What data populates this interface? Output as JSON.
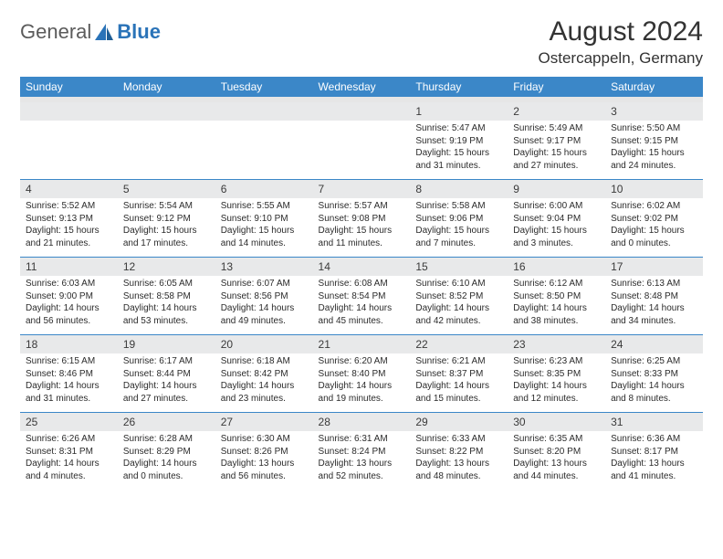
{
  "logo": {
    "text1": "General",
    "text2": "Blue"
  },
  "title": "August 2024",
  "location": "Ostercappeln, Germany",
  "colors": {
    "header_bg": "#3b87c8",
    "header_text": "#ffffff",
    "num_bg": "#e8e9ea",
    "divider": "#3b87c8",
    "logo_gray": "#5b5b5b",
    "logo_blue": "#2a73b8"
  },
  "day_names": [
    "Sunday",
    "Monday",
    "Tuesday",
    "Wednesday",
    "Thursday",
    "Friday",
    "Saturday"
  ],
  "weeks": [
    {
      "nums": [
        "",
        "",
        "",
        "",
        "1",
        "2",
        "3"
      ],
      "cells": [
        null,
        null,
        null,
        null,
        {
          "sunrise": "Sunrise: 5:47 AM",
          "sunset": "Sunset: 9:19 PM",
          "daylight1": "Daylight: 15 hours",
          "daylight2": "and 31 minutes."
        },
        {
          "sunrise": "Sunrise: 5:49 AM",
          "sunset": "Sunset: 9:17 PM",
          "daylight1": "Daylight: 15 hours",
          "daylight2": "and 27 minutes."
        },
        {
          "sunrise": "Sunrise: 5:50 AM",
          "sunset": "Sunset: 9:15 PM",
          "daylight1": "Daylight: 15 hours",
          "daylight2": "and 24 minutes."
        }
      ]
    },
    {
      "nums": [
        "4",
        "5",
        "6",
        "7",
        "8",
        "9",
        "10"
      ],
      "cells": [
        {
          "sunrise": "Sunrise: 5:52 AM",
          "sunset": "Sunset: 9:13 PM",
          "daylight1": "Daylight: 15 hours",
          "daylight2": "and 21 minutes."
        },
        {
          "sunrise": "Sunrise: 5:54 AM",
          "sunset": "Sunset: 9:12 PM",
          "daylight1": "Daylight: 15 hours",
          "daylight2": "and 17 minutes."
        },
        {
          "sunrise": "Sunrise: 5:55 AM",
          "sunset": "Sunset: 9:10 PM",
          "daylight1": "Daylight: 15 hours",
          "daylight2": "and 14 minutes."
        },
        {
          "sunrise": "Sunrise: 5:57 AM",
          "sunset": "Sunset: 9:08 PM",
          "daylight1": "Daylight: 15 hours",
          "daylight2": "and 11 minutes."
        },
        {
          "sunrise": "Sunrise: 5:58 AM",
          "sunset": "Sunset: 9:06 PM",
          "daylight1": "Daylight: 15 hours",
          "daylight2": "and 7 minutes."
        },
        {
          "sunrise": "Sunrise: 6:00 AM",
          "sunset": "Sunset: 9:04 PM",
          "daylight1": "Daylight: 15 hours",
          "daylight2": "and 3 minutes."
        },
        {
          "sunrise": "Sunrise: 6:02 AM",
          "sunset": "Sunset: 9:02 PM",
          "daylight1": "Daylight: 15 hours",
          "daylight2": "and 0 minutes."
        }
      ]
    },
    {
      "nums": [
        "11",
        "12",
        "13",
        "14",
        "15",
        "16",
        "17"
      ],
      "cells": [
        {
          "sunrise": "Sunrise: 6:03 AM",
          "sunset": "Sunset: 9:00 PM",
          "daylight1": "Daylight: 14 hours",
          "daylight2": "and 56 minutes."
        },
        {
          "sunrise": "Sunrise: 6:05 AM",
          "sunset": "Sunset: 8:58 PM",
          "daylight1": "Daylight: 14 hours",
          "daylight2": "and 53 minutes."
        },
        {
          "sunrise": "Sunrise: 6:07 AM",
          "sunset": "Sunset: 8:56 PM",
          "daylight1": "Daylight: 14 hours",
          "daylight2": "and 49 minutes."
        },
        {
          "sunrise": "Sunrise: 6:08 AM",
          "sunset": "Sunset: 8:54 PM",
          "daylight1": "Daylight: 14 hours",
          "daylight2": "and 45 minutes."
        },
        {
          "sunrise": "Sunrise: 6:10 AM",
          "sunset": "Sunset: 8:52 PM",
          "daylight1": "Daylight: 14 hours",
          "daylight2": "and 42 minutes."
        },
        {
          "sunrise": "Sunrise: 6:12 AM",
          "sunset": "Sunset: 8:50 PM",
          "daylight1": "Daylight: 14 hours",
          "daylight2": "and 38 minutes."
        },
        {
          "sunrise": "Sunrise: 6:13 AM",
          "sunset": "Sunset: 8:48 PM",
          "daylight1": "Daylight: 14 hours",
          "daylight2": "and 34 minutes."
        }
      ]
    },
    {
      "nums": [
        "18",
        "19",
        "20",
        "21",
        "22",
        "23",
        "24"
      ],
      "cells": [
        {
          "sunrise": "Sunrise: 6:15 AM",
          "sunset": "Sunset: 8:46 PM",
          "daylight1": "Daylight: 14 hours",
          "daylight2": "and 31 minutes."
        },
        {
          "sunrise": "Sunrise: 6:17 AM",
          "sunset": "Sunset: 8:44 PM",
          "daylight1": "Daylight: 14 hours",
          "daylight2": "and 27 minutes."
        },
        {
          "sunrise": "Sunrise: 6:18 AM",
          "sunset": "Sunset: 8:42 PM",
          "daylight1": "Daylight: 14 hours",
          "daylight2": "and 23 minutes."
        },
        {
          "sunrise": "Sunrise: 6:20 AM",
          "sunset": "Sunset: 8:40 PM",
          "daylight1": "Daylight: 14 hours",
          "daylight2": "and 19 minutes."
        },
        {
          "sunrise": "Sunrise: 6:21 AM",
          "sunset": "Sunset: 8:37 PM",
          "daylight1": "Daylight: 14 hours",
          "daylight2": "and 15 minutes."
        },
        {
          "sunrise": "Sunrise: 6:23 AM",
          "sunset": "Sunset: 8:35 PM",
          "daylight1": "Daylight: 14 hours",
          "daylight2": "and 12 minutes."
        },
        {
          "sunrise": "Sunrise: 6:25 AM",
          "sunset": "Sunset: 8:33 PM",
          "daylight1": "Daylight: 14 hours",
          "daylight2": "and 8 minutes."
        }
      ]
    },
    {
      "nums": [
        "25",
        "26",
        "27",
        "28",
        "29",
        "30",
        "31"
      ],
      "cells": [
        {
          "sunrise": "Sunrise: 6:26 AM",
          "sunset": "Sunset: 8:31 PM",
          "daylight1": "Daylight: 14 hours",
          "daylight2": "and 4 minutes."
        },
        {
          "sunrise": "Sunrise: 6:28 AM",
          "sunset": "Sunset: 8:29 PM",
          "daylight1": "Daylight: 14 hours",
          "daylight2": "and 0 minutes."
        },
        {
          "sunrise": "Sunrise: 6:30 AM",
          "sunset": "Sunset: 8:26 PM",
          "daylight1": "Daylight: 13 hours",
          "daylight2": "and 56 minutes."
        },
        {
          "sunrise": "Sunrise: 6:31 AM",
          "sunset": "Sunset: 8:24 PM",
          "daylight1": "Daylight: 13 hours",
          "daylight2": "and 52 minutes."
        },
        {
          "sunrise": "Sunrise: 6:33 AM",
          "sunset": "Sunset: 8:22 PM",
          "daylight1": "Daylight: 13 hours",
          "daylight2": "and 48 minutes."
        },
        {
          "sunrise": "Sunrise: 6:35 AM",
          "sunset": "Sunset: 8:20 PM",
          "daylight1": "Daylight: 13 hours",
          "daylight2": "and 44 minutes."
        },
        {
          "sunrise": "Sunrise: 6:36 AM",
          "sunset": "Sunset: 8:17 PM",
          "daylight1": "Daylight: 13 hours",
          "daylight2": "and 41 minutes."
        }
      ]
    }
  ]
}
